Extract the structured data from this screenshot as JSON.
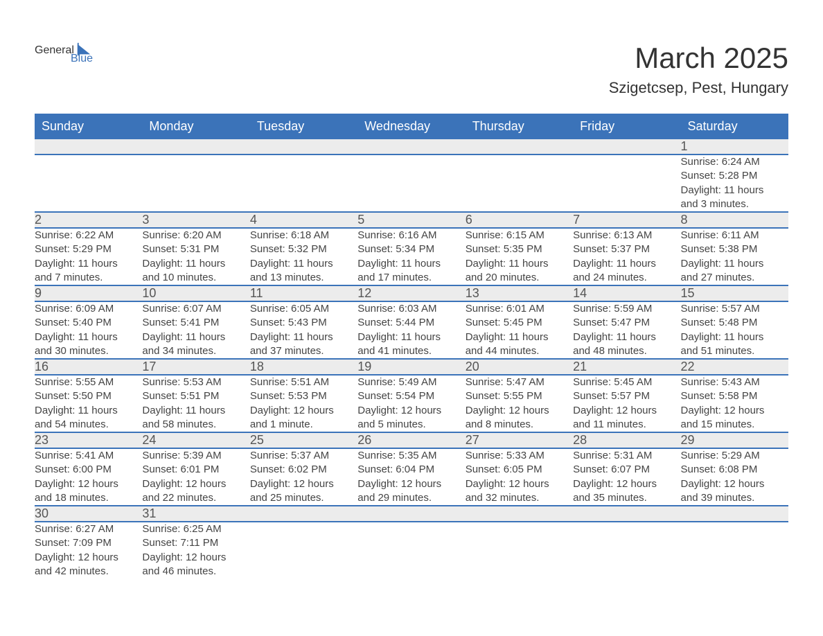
{
  "logo": {
    "text1": "General",
    "text2": "Blue",
    "accent": "#3b73b9"
  },
  "title": "March 2025",
  "location": "Szigetcsep, Pest, Hungary",
  "calendar": {
    "columns": [
      "Sunday",
      "Monday",
      "Tuesday",
      "Wednesday",
      "Thursday",
      "Friday",
      "Saturday"
    ],
    "header_bg": "#3b73b9",
    "header_fg": "#ffffff",
    "stripe_bg": "#ececec",
    "border_color": "#3b73b9",
    "text_color": "#444444",
    "fontsize_header": 18,
    "fontsize_daynum": 18,
    "fontsize_body": 15,
    "weeks": [
      [
        null,
        null,
        null,
        null,
        null,
        null,
        {
          "n": "1",
          "sr": "Sunrise: 6:24 AM",
          "ss": "Sunset: 5:28 PM",
          "d1": "Daylight: 11 hours",
          "d2": "and 3 minutes."
        }
      ],
      [
        {
          "n": "2",
          "sr": "Sunrise: 6:22 AM",
          "ss": "Sunset: 5:29 PM",
          "d1": "Daylight: 11 hours",
          "d2": "and 7 minutes."
        },
        {
          "n": "3",
          "sr": "Sunrise: 6:20 AM",
          "ss": "Sunset: 5:31 PM",
          "d1": "Daylight: 11 hours",
          "d2": "and 10 minutes."
        },
        {
          "n": "4",
          "sr": "Sunrise: 6:18 AM",
          "ss": "Sunset: 5:32 PM",
          "d1": "Daylight: 11 hours",
          "d2": "and 13 minutes."
        },
        {
          "n": "5",
          "sr": "Sunrise: 6:16 AM",
          "ss": "Sunset: 5:34 PM",
          "d1": "Daylight: 11 hours",
          "d2": "and 17 minutes."
        },
        {
          "n": "6",
          "sr": "Sunrise: 6:15 AM",
          "ss": "Sunset: 5:35 PM",
          "d1": "Daylight: 11 hours",
          "d2": "and 20 minutes."
        },
        {
          "n": "7",
          "sr": "Sunrise: 6:13 AM",
          "ss": "Sunset: 5:37 PM",
          "d1": "Daylight: 11 hours",
          "d2": "and 24 minutes."
        },
        {
          "n": "8",
          "sr": "Sunrise: 6:11 AM",
          "ss": "Sunset: 5:38 PM",
          "d1": "Daylight: 11 hours",
          "d2": "and 27 minutes."
        }
      ],
      [
        {
          "n": "9",
          "sr": "Sunrise: 6:09 AM",
          "ss": "Sunset: 5:40 PM",
          "d1": "Daylight: 11 hours",
          "d2": "and 30 minutes."
        },
        {
          "n": "10",
          "sr": "Sunrise: 6:07 AM",
          "ss": "Sunset: 5:41 PM",
          "d1": "Daylight: 11 hours",
          "d2": "and 34 minutes."
        },
        {
          "n": "11",
          "sr": "Sunrise: 6:05 AM",
          "ss": "Sunset: 5:43 PM",
          "d1": "Daylight: 11 hours",
          "d2": "and 37 minutes."
        },
        {
          "n": "12",
          "sr": "Sunrise: 6:03 AM",
          "ss": "Sunset: 5:44 PM",
          "d1": "Daylight: 11 hours",
          "d2": "and 41 minutes."
        },
        {
          "n": "13",
          "sr": "Sunrise: 6:01 AM",
          "ss": "Sunset: 5:45 PM",
          "d1": "Daylight: 11 hours",
          "d2": "and 44 minutes."
        },
        {
          "n": "14",
          "sr": "Sunrise: 5:59 AM",
          "ss": "Sunset: 5:47 PM",
          "d1": "Daylight: 11 hours",
          "d2": "and 48 minutes."
        },
        {
          "n": "15",
          "sr": "Sunrise: 5:57 AM",
          "ss": "Sunset: 5:48 PM",
          "d1": "Daylight: 11 hours",
          "d2": "and 51 minutes."
        }
      ],
      [
        {
          "n": "16",
          "sr": "Sunrise: 5:55 AM",
          "ss": "Sunset: 5:50 PM",
          "d1": "Daylight: 11 hours",
          "d2": "and 54 minutes."
        },
        {
          "n": "17",
          "sr": "Sunrise: 5:53 AM",
          "ss": "Sunset: 5:51 PM",
          "d1": "Daylight: 11 hours",
          "d2": "and 58 minutes."
        },
        {
          "n": "18",
          "sr": "Sunrise: 5:51 AM",
          "ss": "Sunset: 5:53 PM",
          "d1": "Daylight: 12 hours",
          "d2": "and 1 minute."
        },
        {
          "n": "19",
          "sr": "Sunrise: 5:49 AM",
          "ss": "Sunset: 5:54 PM",
          "d1": "Daylight: 12 hours",
          "d2": "and 5 minutes."
        },
        {
          "n": "20",
          "sr": "Sunrise: 5:47 AM",
          "ss": "Sunset: 5:55 PM",
          "d1": "Daylight: 12 hours",
          "d2": "and 8 minutes."
        },
        {
          "n": "21",
          "sr": "Sunrise: 5:45 AM",
          "ss": "Sunset: 5:57 PM",
          "d1": "Daylight: 12 hours",
          "d2": "and 11 minutes."
        },
        {
          "n": "22",
          "sr": "Sunrise: 5:43 AM",
          "ss": "Sunset: 5:58 PM",
          "d1": "Daylight: 12 hours",
          "d2": "and 15 minutes."
        }
      ],
      [
        {
          "n": "23",
          "sr": "Sunrise: 5:41 AM",
          "ss": "Sunset: 6:00 PM",
          "d1": "Daylight: 12 hours",
          "d2": "and 18 minutes."
        },
        {
          "n": "24",
          "sr": "Sunrise: 5:39 AM",
          "ss": "Sunset: 6:01 PM",
          "d1": "Daylight: 12 hours",
          "d2": "and 22 minutes."
        },
        {
          "n": "25",
          "sr": "Sunrise: 5:37 AM",
          "ss": "Sunset: 6:02 PM",
          "d1": "Daylight: 12 hours",
          "d2": "and 25 minutes."
        },
        {
          "n": "26",
          "sr": "Sunrise: 5:35 AM",
          "ss": "Sunset: 6:04 PM",
          "d1": "Daylight: 12 hours",
          "d2": "and 29 minutes."
        },
        {
          "n": "27",
          "sr": "Sunrise: 5:33 AM",
          "ss": "Sunset: 6:05 PM",
          "d1": "Daylight: 12 hours",
          "d2": "and 32 minutes."
        },
        {
          "n": "28",
          "sr": "Sunrise: 5:31 AM",
          "ss": "Sunset: 6:07 PM",
          "d1": "Daylight: 12 hours",
          "d2": "and 35 minutes."
        },
        {
          "n": "29",
          "sr": "Sunrise: 5:29 AM",
          "ss": "Sunset: 6:08 PM",
          "d1": "Daylight: 12 hours",
          "d2": "and 39 minutes."
        }
      ],
      [
        {
          "n": "30",
          "sr": "Sunrise: 6:27 AM",
          "ss": "Sunset: 7:09 PM",
          "d1": "Daylight: 12 hours",
          "d2": "and 42 minutes."
        },
        {
          "n": "31",
          "sr": "Sunrise: 6:25 AM",
          "ss": "Sunset: 7:11 PM",
          "d1": "Daylight: 12 hours",
          "d2": "and 46 minutes."
        },
        null,
        null,
        null,
        null,
        null
      ]
    ]
  }
}
